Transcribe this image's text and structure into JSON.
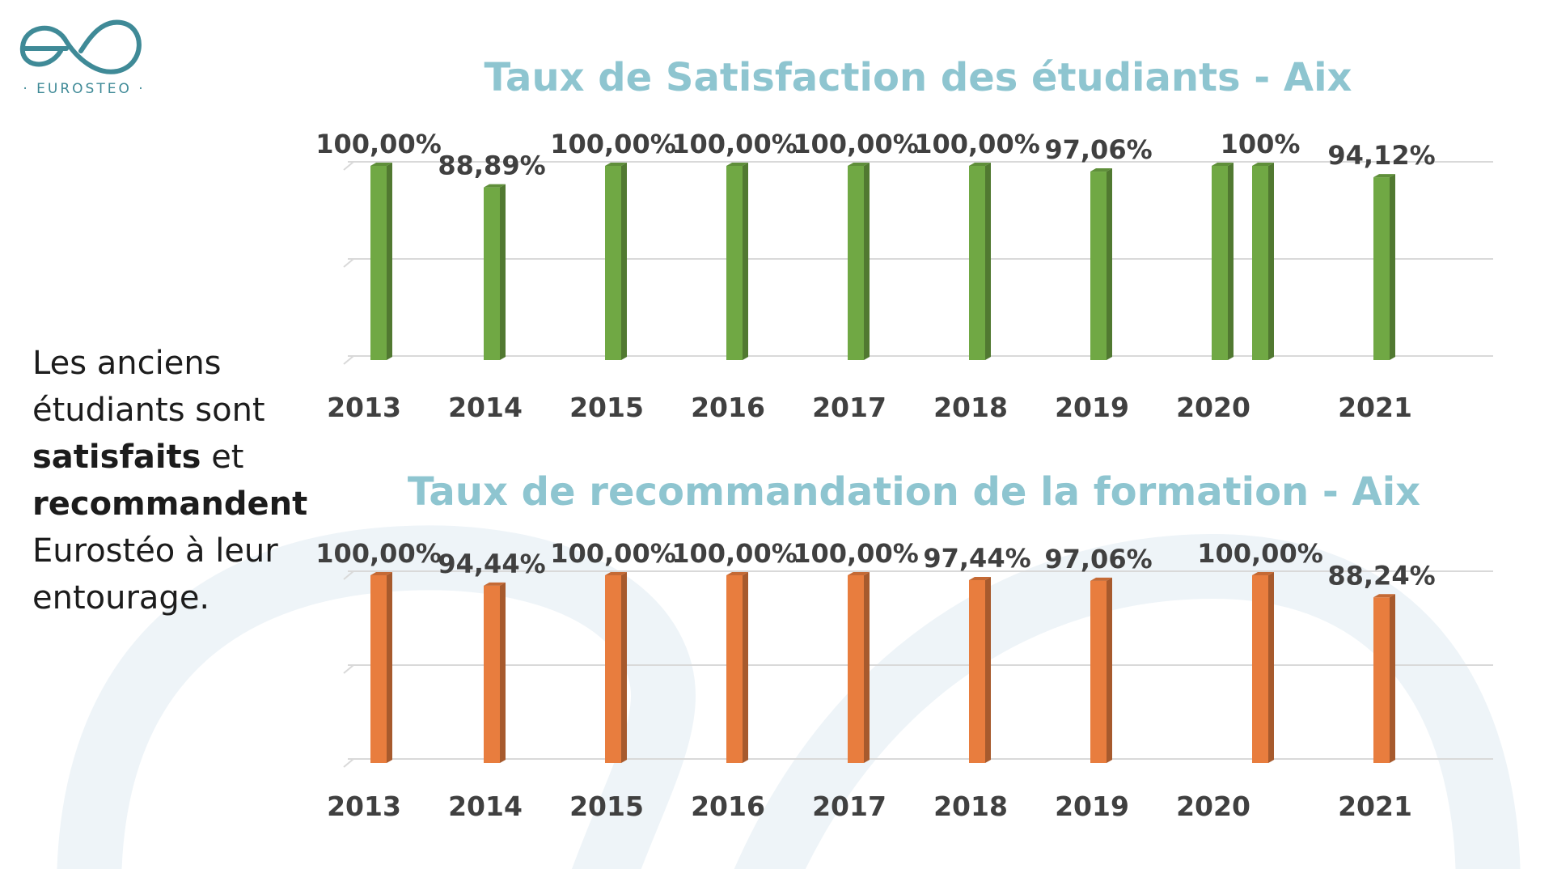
{
  "logo": {
    "text": "· EUROSTEO ·",
    "color": "#3f8a97"
  },
  "side_text": {
    "line1": "Les anciens",
    "line2": "étudiants sont",
    "bold1": "satisfaits",
    "after_bold1": " et",
    "bold2": "recommandent",
    "line5": "Eurostéo à leur",
    "line6": "entourage."
  },
  "colors": {
    "title": "#8ec5d0",
    "green": "#70a844",
    "orange": "#e87d3e",
    "watermark": "#eef4f8"
  },
  "chart_data": [
    {
      "type": "bar",
      "title": "Taux de Satisfaction des étudiants - Aix",
      "color": "#70a844",
      "ylim": [
        0,
        100
      ],
      "grid": true,
      "bars": [
        {
          "category": "2013",
          "value": 100,
          "label": "100,00%"
        },
        {
          "category": "2014",
          "value": 88.89,
          "label": "88,89%"
        },
        {
          "category": "2015",
          "value": 100,
          "label": "100,00%"
        },
        {
          "category": "2016",
          "value": 100,
          "label": "100,00%"
        },
        {
          "category": "2017",
          "value": 100,
          "label": "100,00%"
        },
        {
          "category": "2018",
          "value": 100,
          "label": "100,00%"
        },
        {
          "category": "2019",
          "value": 97.06,
          "label": "97,06%"
        },
        {
          "category": "2020",
          "value": 100,
          "label": ""
        },
        {
          "category": "2020",
          "value": 100,
          "label": "100%"
        },
        {
          "category": "2021",
          "value": 94.12,
          "label": "94,12%"
        }
      ],
      "tick_labels": [
        "2013",
        "2014",
        "2015",
        "2016",
        "2017",
        "2018",
        "2019",
        "2020",
        "2021"
      ]
    },
    {
      "type": "bar",
      "title": "Taux de recommandation de la formation - Aix",
      "color": "#e87d3e",
      "ylim": [
        0,
        100
      ],
      "grid": true,
      "bars": [
        {
          "category": "2013",
          "value": 100,
          "label": "100,00%"
        },
        {
          "category": "2014",
          "value": 94.44,
          "label": "94,44%"
        },
        {
          "category": "2015",
          "value": 100,
          "label": "100,00%"
        },
        {
          "category": "2016",
          "value": 100,
          "label": "100,00%"
        },
        {
          "category": "2017",
          "value": 100,
          "label": "100,00%"
        },
        {
          "category": "2018",
          "value": 97.44,
          "label": "97,44%"
        },
        {
          "category": "2019",
          "value": 97.06,
          "label": "97,06%"
        },
        {
          "category": "2020",
          "value": 100,
          "label": "100,00%"
        },
        {
          "category": "2021",
          "value": 88.24,
          "label": "88,24%"
        }
      ],
      "tick_labels": [
        "2013",
        "2014",
        "2015",
        "2016",
        "2017",
        "2018",
        "2019",
        "2020",
        "2021"
      ]
    }
  ]
}
